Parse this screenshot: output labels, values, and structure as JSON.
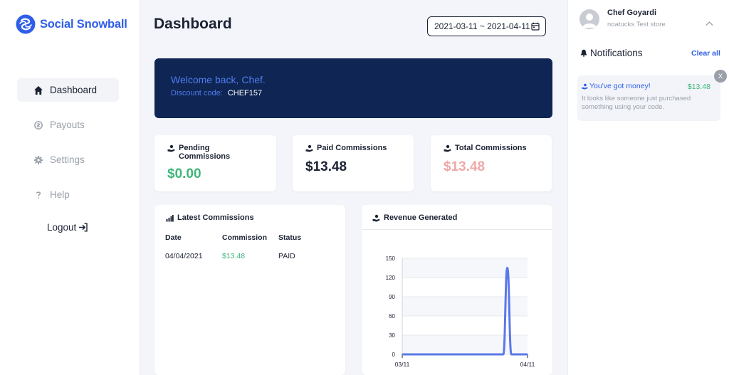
{
  "brand": {
    "name": "Social Snowball",
    "color": "#2f5ee8"
  },
  "sidebar": {
    "items": [
      {
        "label": "Dashboard",
        "icon": "home-icon"
      },
      {
        "label": "Payouts",
        "icon": "payouts-icon"
      },
      {
        "label": "Settings",
        "icon": "gear-icon"
      },
      {
        "label": "Help",
        "icon": "question-icon"
      }
    ],
    "logout_label": "Logout"
  },
  "header": {
    "title": "Dashboard",
    "date_range": "2021-03-11 ~ 2021-04-11"
  },
  "welcome": {
    "title": "Welcome back, Chef.",
    "code_label": "Discount code:",
    "code": "CHEF157"
  },
  "stats": [
    {
      "label": "Pending Commissions",
      "value": "$0.00",
      "color": "#3eb67a"
    },
    {
      "label": "Paid Commissions",
      "value": "$13.48",
      "color": "#1b2233"
    },
    {
      "label": "Total Commissions",
      "value": "$13.48",
      "color": "#f0a8a8"
    }
  ],
  "latest": {
    "title": "Latest Commissions",
    "columns": [
      "Date",
      "Commission",
      "Status"
    ],
    "rows": [
      {
        "date": "04/04/2021",
        "commission": "$13.48",
        "status": "PAID"
      }
    ]
  },
  "revenue": {
    "title": "Revenue Generated"
  },
  "chart_data": {
    "type": "line",
    "x_start_label": "03/11",
    "x_end_label": "04/11",
    "x_index_range": [
      0,
      31
    ],
    "series": [
      {
        "color": "#5b78e8",
        "points": [
          [
            0,
            0
          ],
          [
            25,
            0
          ],
          [
            26,
            135
          ],
          [
            27,
            0
          ],
          [
            31,
            0
          ]
        ]
      }
    ],
    "yticks": [
      0,
      30,
      60,
      90,
      120,
      150
    ],
    "ylim": [
      0,
      150
    ],
    "grid": true
  },
  "user": {
    "name": "Chef Goyardi",
    "store": "noatucks Test store"
  },
  "notifications": {
    "title": "Notifications",
    "clear_label": "Clear all",
    "items": [
      {
        "title": "You've got money!",
        "amount": "$13.48",
        "body": "It looks like someone just purchased something using your code.",
        "close": "X"
      }
    ]
  }
}
